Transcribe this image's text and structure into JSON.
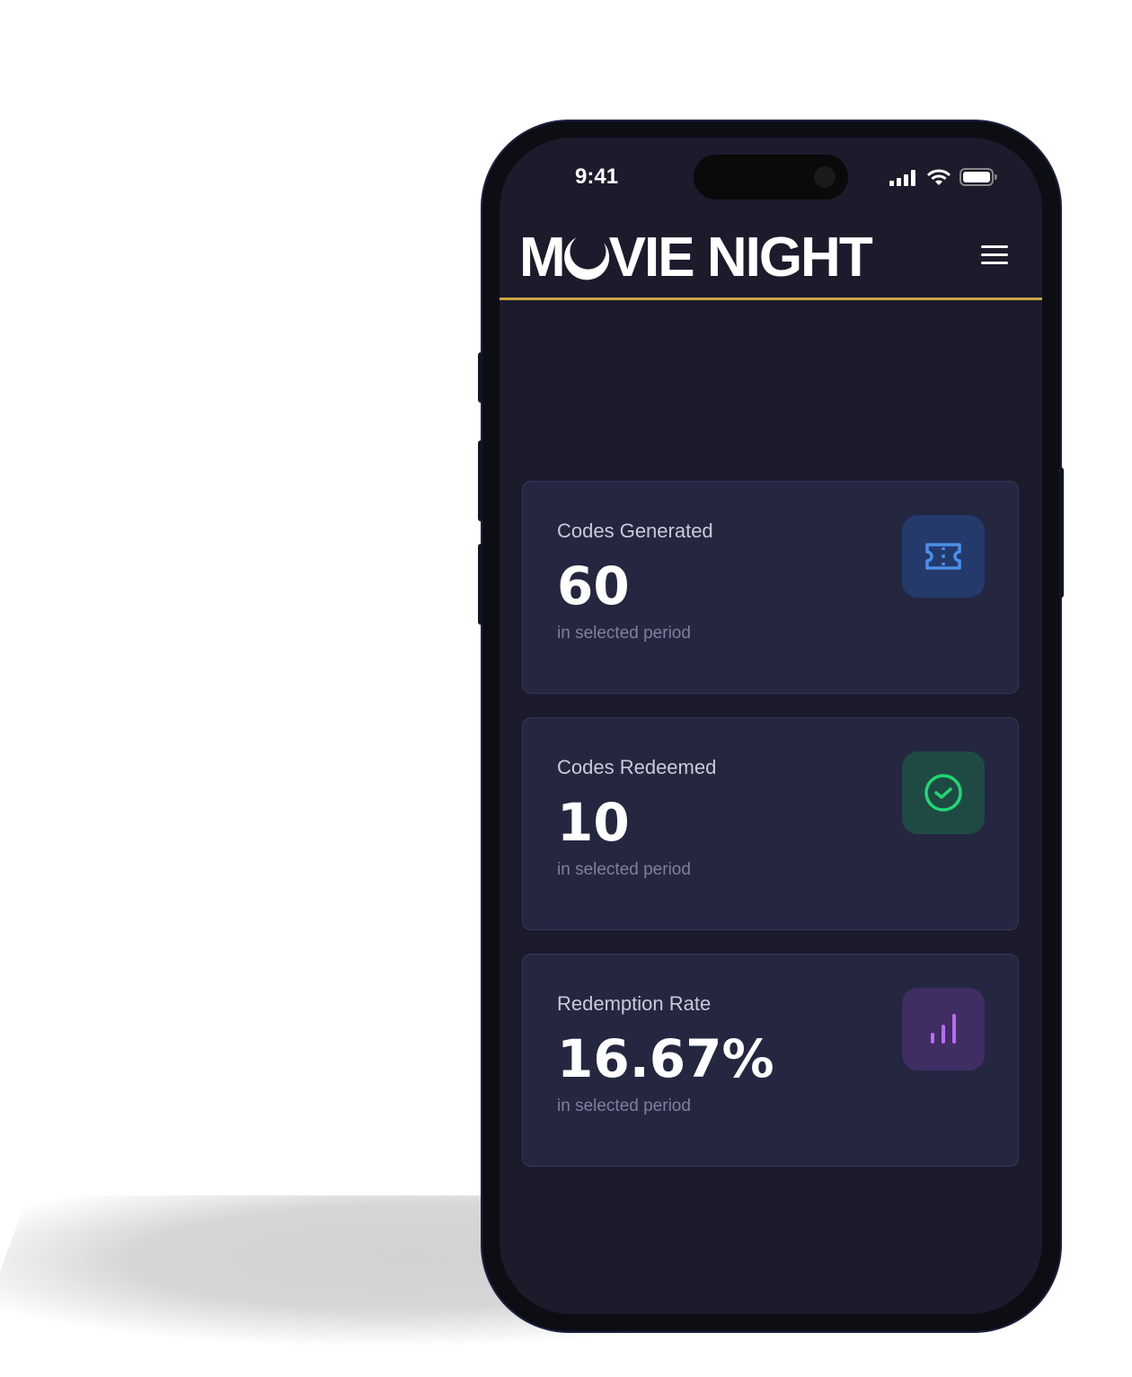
{
  "status_bar": {
    "time": "9:41",
    "icons": [
      "signal-icon",
      "wifi-icon",
      "battery-icon"
    ]
  },
  "header": {
    "logo_text": "MOVIE NIGHT",
    "logo_prefix": "M",
    "logo_suffix": "VIE NIGHT",
    "menu_icon": "hamburger-icon",
    "accent_color": "#c9a33f"
  },
  "stats": [
    {
      "label": "Codes Generated",
      "value": "60",
      "caption": "in selected period",
      "icon": "ticket-icon",
      "icon_color": "#4a8fe8",
      "icon_bg": "#243a6b"
    },
    {
      "label": "Codes Redeemed",
      "value": "10",
      "caption": "in selected period",
      "icon": "check-circle-icon",
      "icon_color": "#1fd874",
      "icon_bg": "#1f4a44"
    },
    {
      "label": "Redemption Rate",
      "value": "16.67%",
      "caption": "in selected period",
      "icon": "bar-chart-icon",
      "icon_color": "#b86cf0",
      "icon_bg": "#3f2d63"
    }
  ]
}
